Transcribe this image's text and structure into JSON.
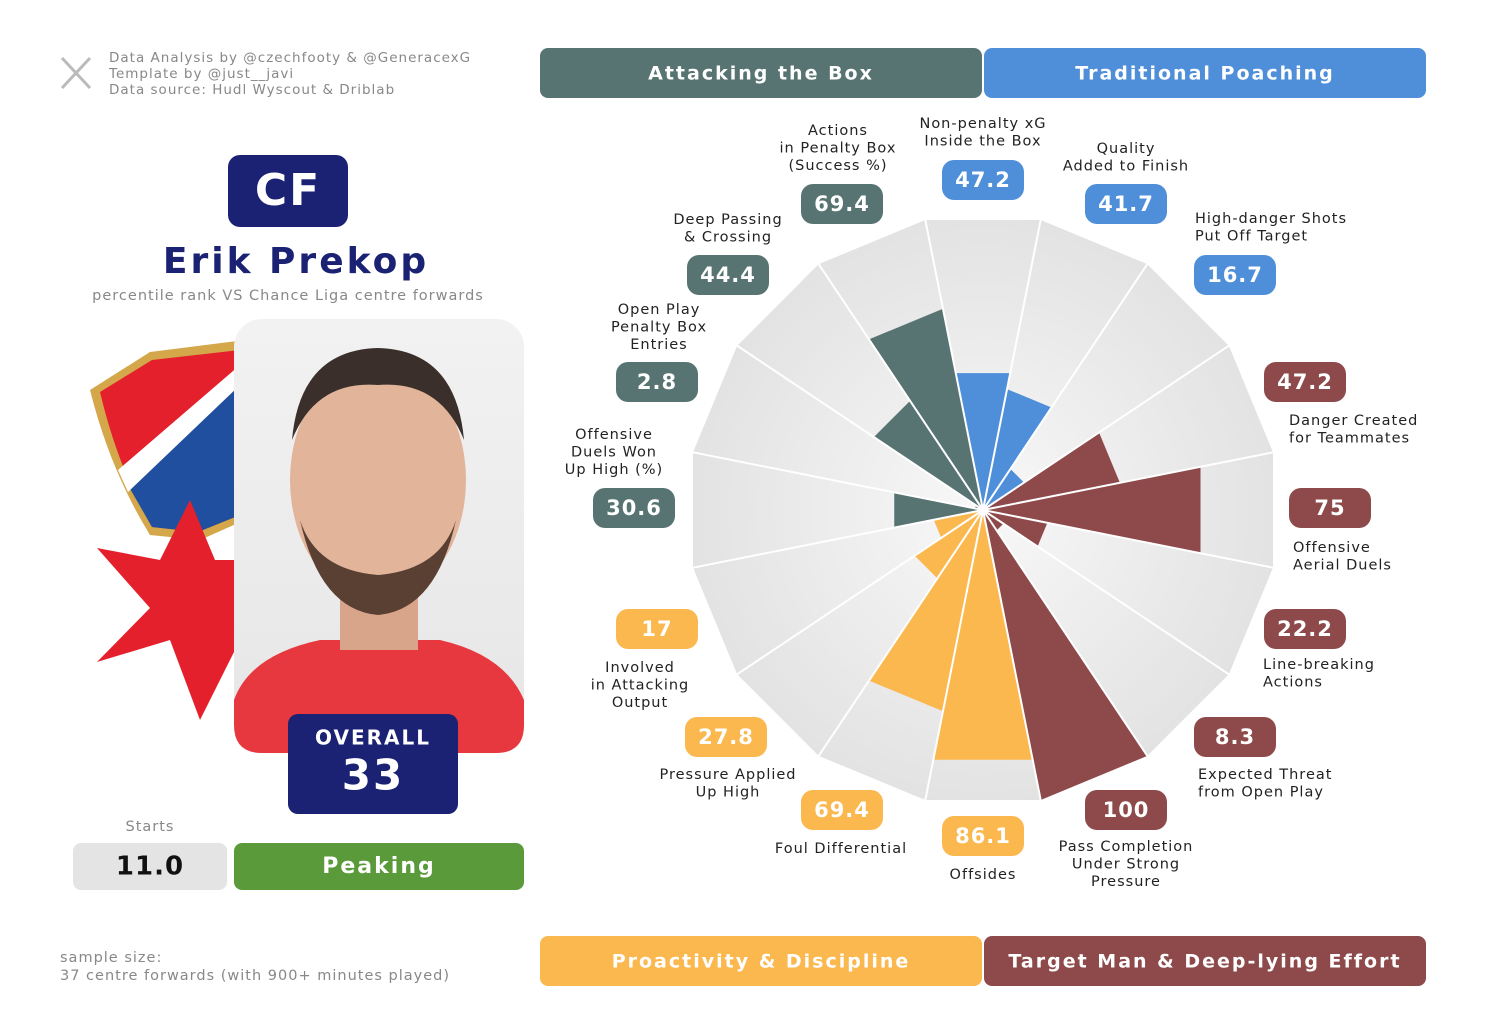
{
  "credits": [
    "Data Analysis by @czechfooty & @GeneracexG",
    "Template by @just__javi",
    "Data source: Hudl Wyscout & Driblab"
  ],
  "position": "CF",
  "player": "Erik Prekop",
  "subtitle": "percentile rank VS Chance Liga centre forwards",
  "overall_label": "OVERALL",
  "overall": 33,
  "starts_label": "Starts",
  "starts": "11.0",
  "status": "Peaking",
  "sample_size": [
    "sample size:",
    "37 centre forwards (with 900+ minutes played)"
  ],
  "groups": [
    {
      "name": "Attacking the Box",
      "color": "#587472"
    },
    {
      "name": "Traditional Poaching",
      "color": "#4f8fd9"
    },
    {
      "name": "Proactivity & Discipline",
      "color": "#fbb84f"
    },
    {
      "name": "Target Man & Deep-lying Effort",
      "color": "#8e4a4a"
    }
  ],
  "chart_data": {
    "type": "pizza",
    "categories": [
      [
        "Non-penalty xG",
        "Inside the Box"
      ],
      [
        "Quality",
        "Added to Finish"
      ],
      [
        "High-danger Shots",
        "Put Off Target"
      ],
      [
        "Danger Created",
        "for Teammates"
      ],
      [
        "Offensive",
        "Aerial Duels"
      ],
      [
        "Line-breaking",
        "Actions"
      ],
      [
        "Expected Threat",
        "from Open Play"
      ],
      [
        "Pass Completion",
        "Under Strong",
        "Pressure"
      ],
      [
        "Offsides"
      ],
      [
        "Foul Differential"
      ],
      [
        "Pressure Applied",
        "Up High"
      ],
      [
        "Involved",
        "in Attacking",
        "Output"
      ],
      [
        "Offensive",
        "Duels Won",
        "Up High (%)"
      ],
      [
        "Open Play",
        "Penalty Box",
        "Entries"
      ],
      [
        "Deep Passing",
        "& Crossing"
      ],
      [
        "Actions",
        "in Penalty Box",
        "(Success %)"
      ]
    ],
    "values": [
      47.2,
      41.7,
      16.7,
      47.2,
      75,
      22.2,
      8.3,
      100,
      86.1,
      69.4,
      27.8,
      17,
      30.6,
      2.8,
      44.4,
      69.4
    ],
    "colors": [
      "#4f8fd9",
      "#4f8fd9",
      "#4f8fd9",
      "#8e4a4a",
      "#8e4a4a",
      "#8e4a4a",
      "#8e4a4a",
      "#8e4a4a",
      "#fbb84f",
      "#fbb84f",
      "#fbb84f",
      "#fbb84f",
      "#587472",
      "#587472",
      "#587472",
      "#587472"
    ],
    "ylim": [
      0,
      100
    ]
  }
}
